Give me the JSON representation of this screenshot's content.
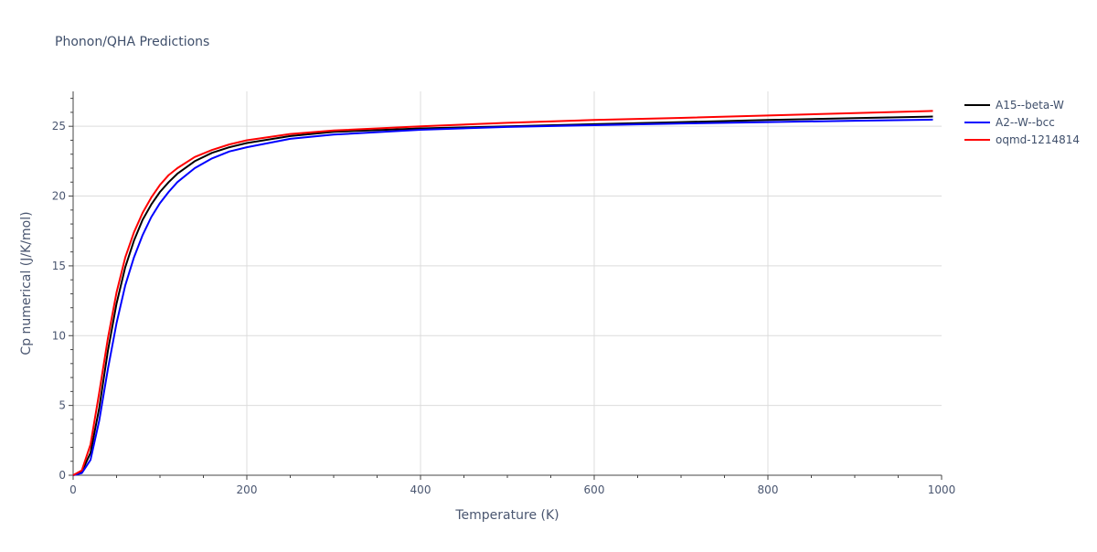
{
  "chart_data": {
    "type": "line",
    "title": "Phonon/QHA Predictions",
    "xlabel": "Temperature (K)",
    "ylabel": "Cp numerical (J/K/mol)",
    "xlim": [
      0,
      1000
    ],
    "ylim": [
      0,
      27.5
    ],
    "xticks": [
      0,
      200,
      400,
      600,
      800,
      1000
    ],
    "yticks": [
      0,
      5,
      10,
      15,
      20,
      25
    ],
    "grid": true,
    "legend_position": "top-right",
    "series": [
      {
        "name": "A15--beta-W",
        "color": "#000000",
        "x": [
          0,
          10,
          20,
          30,
          40,
          50,
          60,
          70,
          80,
          90,
          100,
          110,
          120,
          140,
          160,
          180,
          200,
          250,
          300,
          400,
          500,
          600,
          700,
          800,
          900,
          990
        ],
        "y": [
          0,
          0.25,
          1.6,
          4.8,
          8.9,
          12.3,
          14.9,
          16.8,
          18.3,
          19.4,
          20.3,
          21.0,
          21.6,
          22.5,
          23.1,
          23.5,
          23.8,
          24.3,
          24.6,
          24.85,
          25.0,
          25.15,
          25.3,
          25.45,
          25.58,
          25.7
        ]
      },
      {
        "name": "A2--W--bcc",
        "color": "#0000ff",
        "x": [
          0,
          10,
          20,
          30,
          40,
          50,
          60,
          70,
          80,
          90,
          100,
          110,
          120,
          140,
          160,
          180,
          200,
          250,
          300,
          400,
          500,
          600,
          700,
          800,
          900,
          990
        ],
        "y": [
          0,
          0.15,
          1.1,
          3.9,
          7.6,
          10.9,
          13.6,
          15.6,
          17.2,
          18.5,
          19.5,
          20.3,
          21.0,
          22.0,
          22.7,
          23.2,
          23.5,
          24.1,
          24.4,
          24.75,
          24.95,
          25.08,
          25.2,
          25.3,
          25.4,
          25.48
        ]
      },
      {
        "name": "oqmd-1214814",
        "color": "#ff0000",
        "x": [
          0,
          10,
          20,
          30,
          40,
          50,
          60,
          70,
          80,
          90,
          100,
          110,
          120,
          140,
          160,
          180,
          200,
          250,
          300,
          400,
          500,
          600,
          700,
          800,
          900,
          990
        ],
        "y": [
          0,
          0.35,
          2.2,
          5.9,
          9.8,
          13.1,
          15.6,
          17.4,
          18.8,
          19.9,
          20.8,
          21.5,
          22.0,
          22.8,
          23.3,
          23.7,
          24.0,
          24.45,
          24.7,
          25.0,
          25.25,
          25.45,
          25.6,
          25.77,
          25.95,
          26.1
        ]
      }
    ]
  }
}
